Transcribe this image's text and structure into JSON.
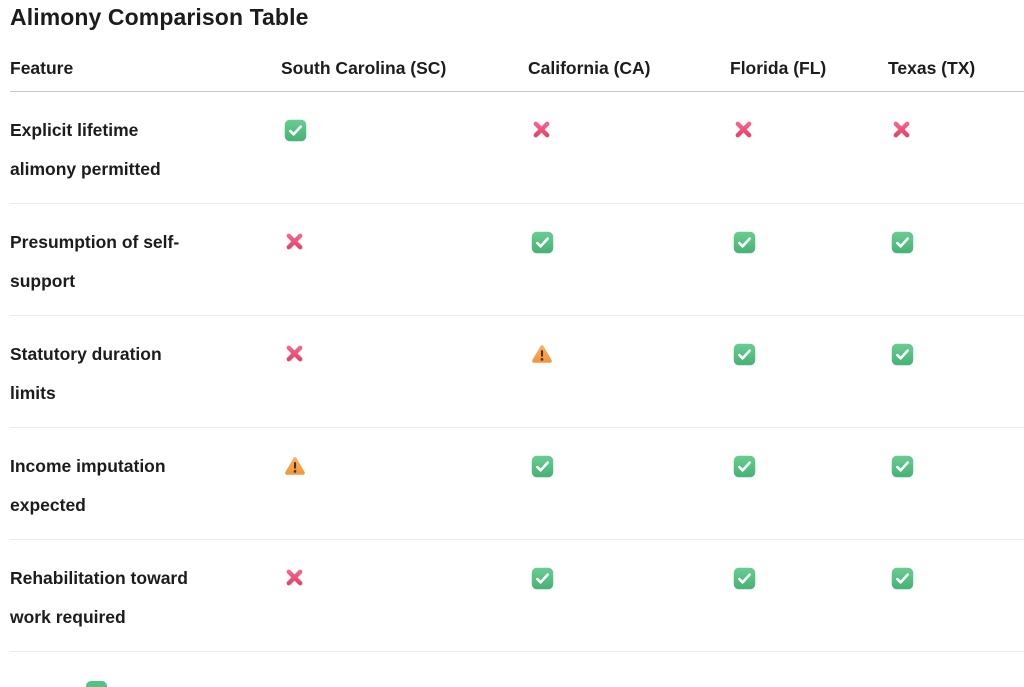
{
  "title": "Alimony Comparison Table",
  "table": {
    "columns": [
      "Feature",
      "South Carolina (SC)",
      "California (CA)",
      "Florida (FL)",
      "Texas (TX)"
    ],
    "rows": [
      {
        "feature": "Explicit lifetime alimony permitted",
        "values": [
          "check",
          "cross",
          "cross",
          "cross"
        ]
      },
      {
        "feature": "Presumption of self-support",
        "values": [
          "cross",
          "check",
          "check",
          "check"
        ]
      },
      {
        "feature": "Statutory duration limits",
        "values": [
          "cross",
          "warning",
          "check",
          "check"
        ]
      },
      {
        "feature": "Income imputation expected",
        "values": [
          "warning",
          "check",
          "check",
          "check"
        ]
      },
      {
        "feature": "Rehabilitation toward work required",
        "values": [
          "cross",
          "check",
          "check",
          "check"
        ]
      }
    ]
  },
  "icon_legend": {
    "check": "check-icon",
    "cross": "cross-icon",
    "warning": "warning-icon"
  },
  "colors": {
    "check_green": "#53BE82",
    "cross_pink": "#F0517B",
    "warning_orange": "#F7A64A",
    "warning_glyph": "#4A3224",
    "text": "#1C1C1E",
    "header_border": "#C9C9C9",
    "row_border": "#EBEBEB",
    "background": "#FFFFFF"
  }
}
